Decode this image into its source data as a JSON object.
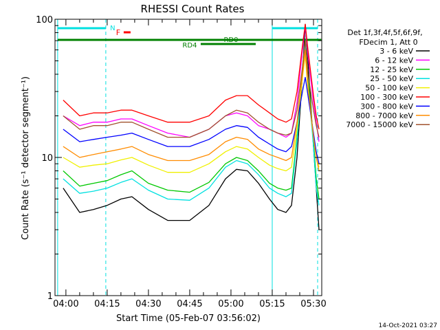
{
  "chart_data": {
    "type": "line",
    "title": "RHESSI Count Rates",
    "xlabel": "Start Time (05-Feb-07 03:56:02)",
    "ylabel": "Count Rate (s⁻¹ detector segment⁻¹)",
    "yscale": "log",
    "ylim": [
      1,
      100
    ],
    "xlim": [
      "03:56:02",
      "05:33:00"
    ],
    "x_ticks": [
      "04:00",
      "04:15",
      "04:30",
      "04:45",
      "05:00",
      "05:15",
      "05:30"
    ],
    "y_ticks": [
      "1",
      "10",
      "100"
    ],
    "legend_header": [
      "Det 1f,3f,4f,5f,6f,9f,",
      "FDecim 1, Att 0"
    ],
    "footer": "14-Oct-2021 03:27",
    "grid": false,
    "legend_position": "right",
    "annotations": [
      "N",
      "F",
      "RD0",
      "RD4"
    ],
    "x": [
      "03:59",
      "04:05",
      "04:10",
      "04:15",
      "04:20",
      "04:24",
      "04:30",
      "04:37",
      "04:45",
      "04:52",
      "04:58",
      "05:02",
      "05:06",
      "05:10",
      "05:14",
      "05:17",
      "05:20",
      "05:22",
      "05:24",
      "05:26",
      "05:27",
      "05:28",
      "05:30",
      "05:31",
      "05:32"
    ],
    "series": [
      {
        "name": "3 - 6 keV",
        "color": "#000000",
        "values": [
          6.0,
          4.0,
          4.2,
          4.5,
          5.0,
          5.2,
          4.2,
          3.5,
          3.5,
          4.5,
          7.0,
          8.2,
          8.0,
          6.5,
          5.0,
          4.2,
          4.0,
          4.5,
          10,
          40,
          92,
          50,
          12,
          6,
          3
        ]
      },
      {
        "name": "6 - 12 keV",
        "color": "#ff00ff",
        "values": [
          20,
          17,
          18,
          18,
          19,
          19,
          17,
          15,
          14,
          16,
          20,
          21,
          20,
          17,
          16,
          15,
          14,
          15,
          25,
          60,
          90,
          55,
          25,
          18,
          13
        ]
      },
      {
        "name": "12 - 25 keV",
        "color": "#00c800",
        "values": [
          8.0,
          6.2,
          6.5,
          6.8,
          7.5,
          8.0,
          6.5,
          5.8,
          5.6,
          6.6,
          9.0,
          10.0,
          9.5,
          8.0,
          6.5,
          6.0,
          5.8,
          6.0,
          14,
          45,
          72,
          40,
          13,
          7,
          5
        ]
      },
      {
        "name": "25 - 50 keV",
        "color": "#00e0e0",
        "values": [
          7.0,
          5.5,
          5.7,
          6.0,
          6.6,
          7.0,
          5.8,
          5.0,
          4.9,
          6.0,
          8.5,
          9.5,
          9.0,
          7.5,
          6.0,
          5.5,
          5.2,
          5.5,
          13,
          40,
          65,
          35,
          12,
          6,
          4.5
        ]
      },
      {
        "name": "50 - 100 keV",
        "color": "#f0f000",
        "values": [
          10,
          8.5,
          8.8,
          9.0,
          9.6,
          10,
          8.8,
          7.8,
          7.8,
          9.0,
          11,
          12,
          11.5,
          10,
          8.8,
          8.3,
          8.0,
          8.5,
          16,
          38,
          55,
          30,
          14,
          10,
          8.5
        ]
      },
      {
        "name": "100 - 300 keV",
        "color": "#ff0000",
        "values": [
          26,
          20,
          21,
          21,
          22,
          22,
          20,
          18,
          18,
          20,
          26,
          28,
          28,
          24,
          21,
          19,
          18,
          19,
          30,
          65,
          92,
          60,
          28,
          20,
          16
        ]
      },
      {
        "name": "300 - 800 keV",
        "color": "#0000ff",
        "values": [
          16,
          13,
          13.5,
          14,
          14.5,
          15,
          13.5,
          12,
          12,
          13.5,
          16,
          17,
          16.5,
          14,
          12.5,
          11.5,
          11,
          12,
          18,
          30,
          38,
          28,
          15,
          11,
          9
        ]
      },
      {
        "name": "800 - 7000 keV",
        "color": "#ff8c00",
        "values": [
          12,
          10,
          10.5,
          11,
          11.5,
          12,
          10.5,
          9.5,
          9.5,
          10.5,
          13,
          14,
          13.5,
          11.5,
          10.5,
          10,
          9.5,
          10,
          18,
          40,
          60,
          33,
          14,
          10,
          8
        ]
      },
      {
        "name": "7000 - 15000 keV",
        "color": "#a0522d",
        "values": [
          20,
          16,
          17,
          17,
          18,
          18,
          16,
          14,
          14,
          16,
          20,
          22,
          21,
          18,
          16,
          15,
          14.5,
          15,
          22,
          45,
          70,
          40,
          22,
          17,
          14
        ]
      }
    ]
  }
}
